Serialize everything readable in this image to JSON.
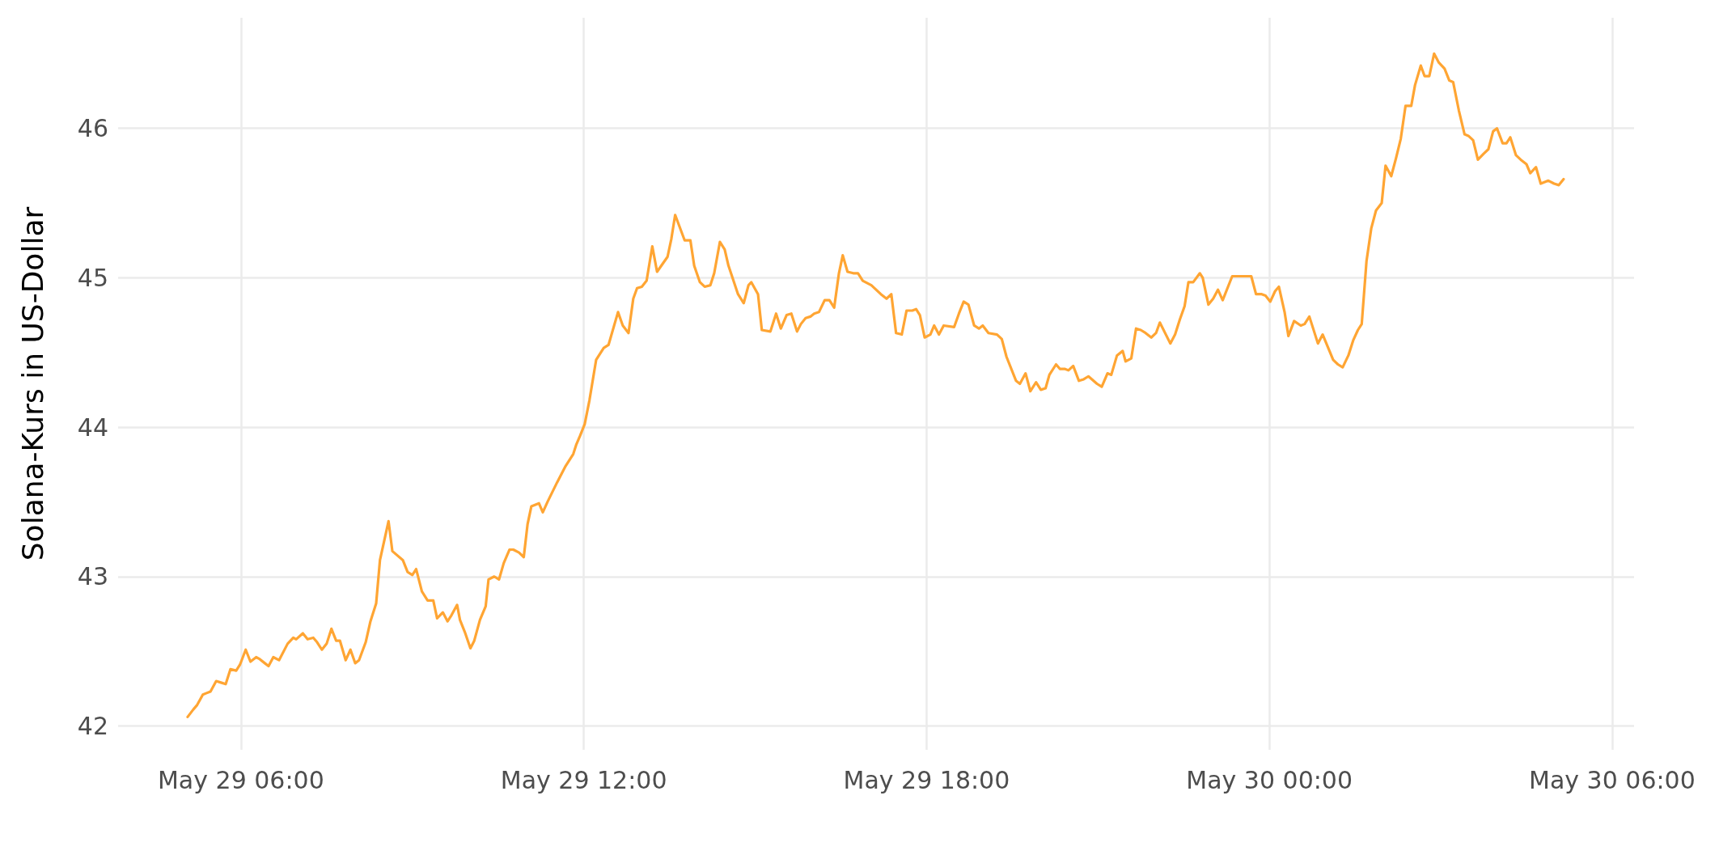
{
  "chart_data": {
    "type": "line",
    "ylabel": "Solana-Kurs in US-Dollar",
    "xlim": [
      "--05-29T03:51",
      "--05-30T06:23"
    ],
    "xticks": [
      {
        "value": "--05-29T06:00",
        "label": "May 29 06:00"
      },
      {
        "value": "--05-29T12:00",
        "label": "May 29 12:00"
      },
      {
        "value": "--05-29T18:00",
        "label": "May 29 18:00"
      },
      {
        "value": "--05-30T00:00",
        "label": "May 30 00:00"
      },
      {
        "value": "--05-30T06:00",
        "label": "May 30 06:00"
      }
    ],
    "ylim": [
      41.84,
      46.74
    ],
    "yticks": [
      42,
      43,
      44,
      45,
      46
    ],
    "grid": true,
    "marker": "none",
    "series": [
      {
        "color": "#ffa533",
        "x": [
          "--05-29T05:04",
          "--05-29T05:10",
          "--05-29T05:14",
          "--05-29T05:20",
          "--05-29T05:28",
          "--05-29T05:34",
          "--05-29T05:39",
          "--05-29T05:44",
          "--05-29T05:49",
          "--05-29T05:55",
          "--05-29T05:59",
          "--05-29T06:05",
          "--05-29T06:10",
          "--05-29T06:16",
          "--05-29T06:19",
          "--05-29T06:25",
          "--05-29T06:29",
          "--05-29T06:34",
          "--05-29T06:40",
          "--05-29T06:49",
          "--05-29T06:55",
          "--05-29T06:58",
          "--05-29T07:05",
          "--05-29T07:10",
          "--05-29T07:16",
          "--05-29T07:20",
          "--05-29T07:25",
          "--05-29T07:30",
          "--05-29T07:35",
          "--05-29T07:40",
          "--05-29T07:44",
          "--05-29T07:50",
          "--05-29T07:55",
          "--05-29T08:00",
          "--05-29T08:04",
          "--05-29T08:11",
          "--05-29T08:16",
          "--05-29T08:22",
          "--05-29T08:26",
          "--05-29T08:35",
          "--05-29T08:39",
          "--05-29T08:50",
          "--05-29T08:55",
          "--05-29T09:00",
          "--05-29T09:04",
          "--05-29T09:10",
          "--05-29T09:16",
          "--05-29T09:22",
          "--05-29T09:26",
          "--05-29T09:32",
          "--05-29T09:37",
          "--05-29T09:41",
          "--05-29T09:47",
          "--05-29T09:50",
          "--05-29T09:55",
          "--05-29T10:01",
          "--05-29T10:05",
          "--05-29T10:11",
          "--05-29T10:17",
          "--05-29T10:20",
          "--05-29T10:26",
          "--05-29T10:31",
          "--05-29T10:36",
          "--05-29T10:42",
          "--05-29T10:46",
          "--05-29T10:52",
          "--05-29T10:57",
          "--05-29T11:01",
          "--05-29T11:05",
          "--05-29T11:13",
          "--05-29T11:17",
          "--05-29T11:22",
          "--05-29T11:32",
          "--05-29T11:41",
          "--05-29T11:49",
          "--05-29T11:52",
          "--05-29T11:56",
          "--05-29T12:01",
          "--05-29T12:06",
          "--05-29T12:13",
          "--05-29T12:21",
          "--05-29T12:26",
          "--05-29T12:36",
          "--05-29T12:41",
          "--05-29T12:47",
          "--05-29T12:52",
          "--05-29T12:56",
          "--05-29T13:01",
          "--05-29T13:06",
          "--05-29T13:12",
          "--05-29T13:17",
          "--05-29T13:28",
          "--05-29T13:32",
          "--05-29T13:36",
          "--05-29T13:46",
          "--05-29T13:52",
          "--05-29T13:56",
          "--05-29T14:02",
          "--05-29T14:07",
          "--05-29T14:13",
          "--05-29T14:17",
          "--05-29T14:23",
          "--05-29T14:28",
          "--05-29T14:32",
          "--05-29T14:42",
          "--05-29T14:48",
          "--05-29T14:53",
          "--05-29T14:56",
          "--05-29T15:03",
          "--05-29T15:07",
          "--05-29T15:16",
          "--05-29T15:22",
          "--05-29T15:27",
          "--05-29T15:33",
          "--05-29T15:38",
          "--05-29T15:44",
          "--05-29T15:48",
          "--05-29T15:53",
          "--05-29T15:58",
          "--05-29T16:02",
          "--05-29T16:07",
          "--05-29T16:13",
          "--05-29T16:18",
          "--05-29T16:23",
          "--05-29T16:28",
          "--05-29T16:32",
          "--05-29T16:37",
          "--05-29T16:43",
          "--05-29T16:48",
          "--05-29T16:53",
          "--05-29T17:02",
          "--05-29T17:12",
          "--05-29T17:18",
          "--05-29T17:23",
          "--05-29T17:28",
          "--05-29T17:34",
          "--05-29T17:39",
          "--05-29T17:45",
          "--05-29T17:49",
          "--05-29T17:53",
          "--05-29T17:58",
          "--05-29T18:04",
          "--05-29T18:08",
          "--05-29T18:13",
          "--05-29T18:18",
          "--05-29T18:29",
          "--05-29T18:34",
          "--05-29T18:39",
          "--05-29T18:44",
          "--05-29T18:50",
          "--05-29T18:55",
          "--05-29T18:59",
          "--05-29T19:05",
          "--05-29T19:14",
          "--05-29T19:19",
          "--05-29T19:24",
          "--05-29T19:34",
          "--05-29T19:38",
          "--05-29T19:44",
          "--05-29T19:49",
          "--05-29T19:55",
          "--05-29T20:00",
          "--05-29T20:05",
          "--05-29T20:09",
          "--05-29T20:16",
          "--05-29T20:20",
          "--05-29T20:25",
          "--05-29T20:29",
          "--05-29T20:34",
          "--05-29T20:40",
          "--05-29T20:45",
          "--05-29T20:50",
          "--05-29T20:59",
          "--05-29T21:04",
          "--05-29T21:10",
          "--05-29T21:14",
          "--05-29T21:20",
          "--05-29T21:26",
          "--05-29T21:29",
          "--05-29T21:35",
          "--05-29T21:40",
          "--05-29T21:45",
          "--05-29T21:50",
          "--05-29T21:56",
          "--05-29T22:01",
          "--05-29T22:05",
          "--05-29T22:16",
          "--05-29T22:21",
          "--05-29T22:26",
          "--05-29T22:31",
          "--05-29T22:35",
          "--05-29T22:40",
          "--05-29T22:47",
          "--05-29T22:50",
          "--05-29T22:56",
          "--05-29T23:01",
          "--05-29T23:06",
          "--05-29T23:11",
          "--05-29T23:21",
          "--05-29T23:31",
          "--05-29T23:37",
          "--05-29T23:41",
          "--05-29T23:46",
          "--05-29T23:52",
          "--05-29T23:56",
          "--05-30T00:01",
          "--05-30T00:06",
          "--05-30T00:10",
          "--05-30T00:16",
          "--05-30T00:20",
          "--05-30T00:26",
          "--05-30T00:33",
          "--05-30T00:37",
          "--05-30T00:42",
          "--05-30T00:51",
          "--05-30T00:56",
          "--05-30T01:07",
          "--05-30T01:12",
          "--05-30T01:17",
          "--05-30T01:23",
          "--05-30T01:28",
          "--05-30T01:33",
          "--05-30T01:37",
          "--05-30T01:42",
          "--05-30T01:47",
          "--05-30T01:52",
          "--05-30T01:58",
          "--05-30T02:02",
          "--05-30T02:08",
          "--05-30T02:13",
          "--05-30T02:18",
          "--05-30T02:23",
          "--05-30T02:29",
          "--05-30T02:33",
          "--05-30T02:39",
          "--05-30T02:43",
          "--05-30T02:48",
          "--05-30T02:53",
          "--05-30T02:58",
          "--05-30T03:04",
          "--05-30T03:09",
          "--05-30T03:13",
          "--05-30T03:19",
          "--05-30T03:25",
          "--05-30T03:29",
          "--05-30T03:34",
          "--05-30T03:39",
          "--05-30T03:45",
          "--05-30T03:50",
          "--05-30T03:55",
          "--05-30T03:59",
          "--05-30T04:05",
          "--05-30T04:09",
          "--05-30T04:13",
          "--05-30T04:19",
          "--05-30T04:24",
          "--05-30T04:30",
          "--05-30T04:34",
          "--05-30T04:40",
          "--05-30T04:45",
          "--05-30T04:53",
          "--05-30T04:59",
          "--05-30T05:04",
          "--05-30T05:09"
        ],
        "values": [
          42.06,
          42.11,
          42.14,
          42.21,
          42.23,
          42.3,
          42.29,
          42.28,
          42.38,
          42.37,
          42.41,
          42.51,
          42.43,
          42.46,
          42.45,
          42.42,
          42.4,
          42.46,
          42.44,
          42.55,
          42.59,
          42.58,
          42.62,
          42.58,
          42.59,
          42.56,
          42.51,
          42.55,
          42.65,
          42.57,
          42.57,
          42.44,
          42.51,
          42.42,
          42.44,
          42.56,
          42.7,
          42.82,
          43.11,
          43.37,
          43.17,
          43.11,
          43.03,
          43.01,
          43.05,
          42.9,
          42.84,
          42.84,
          42.72,
          42.76,
          42.7,
          42.74,
          42.81,
          42.71,
          42.63,
          42.52,
          42.57,
          42.71,
          42.8,
          42.98,
          43.0,
          42.98,
          43.09,
          43.18,
          43.18,
          43.16,
          43.13,
          43.35,
          43.47,
          43.49,
          43.43,
          43.5,
          43.63,
          43.74,
          43.82,
          43.88,
          43.94,
          44.02,
          44.18,
          44.45,
          44.53,
          44.55,
          44.77,
          44.68,
          44.63,
          44.86,
          44.93,
          44.94,
          44.98,
          45.21,
          45.04,
          45.14,
          45.26,
          45.42,
          45.25,
          45.25,
          45.08,
          44.97,
          44.94,
          44.95,
          45.03,
          45.24,
          45.19,
          45.08,
          44.89,
          44.83,
          44.95,
          44.97,
          44.89,
          44.65,
          44.64,
          44.76,
          44.66,
          44.75,
          44.76,
          44.64,
          44.69,
          44.73,
          44.74,
          44.76,
          44.77,
          44.85,
          44.85,
          44.8,
          45.03,
          45.15,
          45.04,
          45.03,
          45.03,
          44.98,
          44.95,
          44.89,
          44.86,
          44.89,
          44.63,
          44.62,
          44.78,
          44.78,
          44.79,
          44.75,
          44.6,
          44.62,
          44.68,
          44.62,
          44.68,
          44.67,
          44.76,
          44.84,
          44.82,
          44.68,
          44.66,
          44.68,
          44.63,
          44.62,
          44.59,
          44.47,
          44.31,
          44.29,
          44.36,
          44.24,
          44.3,
          44.25,
          44.26,
          44.35,
          44.42,
          44.39,
          44.39,
          44.38,
          44.41,
          44.31,
          44.32,
          44.34,
          44.29,
          44.27,
          44.36,
          44.35,
          44.48,
          44.51,
          44.44,
          44.46,
          44.66,
          44.65,
          44.63,
          44.6,
          44.63,
          44.7,
          44.56,
          44.62,
          44.72,
          44.81,
          44.97,
          44.97,
          45.03,
          45.0,
          44.82,
          44.86,
          44.92,
          44.85,
          45.01,
          45.01,
          45.01,
          45.01,
          44.89,
          44.89,
          44.88,
          44.84,
          44.91,
          44.94,
          44.77,
          44.61,
          44.71,
          44.68,
          44.69,
          44.74,
          44.56,
          44.62,
          44.45,
          44.42,
          44.4,
          44.48,
          44.58,
          44.65,
          44.69,
          45.11,
          45.33,
          45.45,
          45.5,
          45.75,
          45.68,
          45.8,
          45.93,
          46.15,
          46.15,
          46.29,
          46.42,
          46.35,
          46.35,
          46.5,
          46.44,
          46.4,
          46.32,
          46.31,
          46.12,
          45.96,
          45.95,
          45.92,
          45.79,
          45.83,
          45.86,
          45.98,
          46.0,
          45.9,
          45.9,
          45.94,
          45.82,
          45.79,
          45.76,
          45.7,
          45.74,
          45.63,
          45.65,
          45.63,
          45.62,
          45.66
        ]
      }
    ]
  }
}
